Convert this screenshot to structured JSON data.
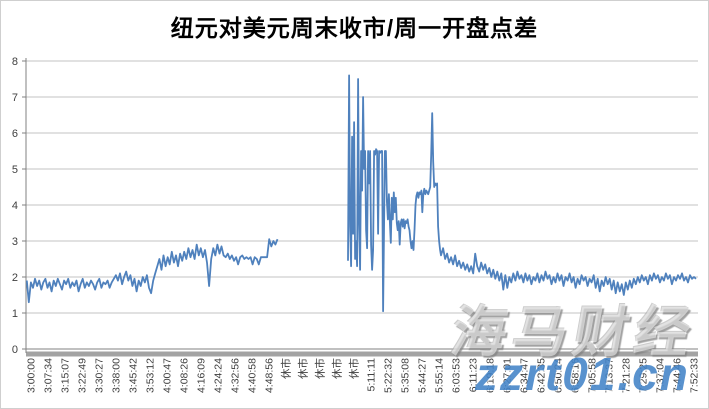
{
  "title": "纽元对美元周末收市/周一开盘点差",
  "watermarks": {
    "brand": "海马财经",
    "site": "zzrt01.cn"
  },
  "colors": {
    "line": "#4F81BD",
    "grid": "#C3C3C3",
    "axis": "#808080",
    "axis_shadow": "#A3A3A3",
    "tick_label": "#404040",
    "title": "#000000"
  },
  "chart_data": {
    "type": "line",
    "title": "纽元对美元周末收市/周一开盘点差",
    "xlabel": "",
    "ylabel": "",
    "ylim": [
      0,
      8
    ],
    "yticks": [
      0,
      1,
      2,
      3,
      4,
      5,
      6,
      7,
      8
    ],
    "grid": "horizontal",
    "legend": "none",
    "x_labels": [
      "3:00:00",
      "3:07:34",
      "3:15:07",
      "3:22:49",
      "3:30:27",
      "3:38:00",
      "3:45:42",
      "3:53:12",
      "4:00:47",
      "4:08:26",
      "4:16:09",
      "4:24:24",
      "4:32:56",
      "4:40:58",
      "4:48:56",
      "休市",
      "休市",
      "休市",
      "休市",
      "休市",
      "5:11:11",
      "5:22:32",
      "5:35:08",
      "5:44:27",
      "5:55:14",
      "6:03:53",
      "6:11:23",
      "6:19:18",
      "6:27:01",
      "6:34:47",
      "6:42:35",
      "6:50:24",
      "6:58:16",
      "7:05:58",
      "7:13:37",
      "7:21:28",
      "7:29:25",
      "7:37:04",
      "7:44:46",
      "7:52:33"
    ],
    "note": "x positions of points are fractional label indices; data gap during 休市 (market closed) between 4:48:56 and 5:11:11",
    "series": [
      {
        "name": "周末收市/周一开盘点差",
        "color": "#4F81BD",
        "runs": [
          {
            "parts": [
              {
                "x_from": -0.25,
                "x_to": 14.5,
                "values": [
                  1.9,
                  1.3,
                  1.85,
                  1.7,
                  1.95,
                  1.75,
                  1.9,
                  1.65,
                  1.85,
                  1.95,
                  1.7,
                  1.85,
                  1.6,
                  1.9,
                  1.75,
                  1.95,
                  1.8,
                  1.65,
                  1.9,
                  1.8,
                  1.95,
                  1.7,
                  1.85,
                  1.75,
                  1.9,
                  1.6,
                  1.8,
                  1.95,
                  1.7,
                  1.85,
                  1.75,
                  1.9,
                  1.8,
                  1.65,
                  1.85,
                  1.95,
                  1.7,
                  1.85,
                  1.8,
                  1.9,
                  1.7,
                  1.85,
                  1.95,
                  2.05,
                  1.9,
                  2.1,
                  1.8,
                  2.0,
                  2.15,
                  1.9,
                  2.05,
                  1.75,
                  1.95,
                  1.6,
                  1.9,
                  1.75,
                  2.0,
                  1.85,
                  2.05,
                  1.7,
                  1.55,
                  1.9,
                  2.1,
                  2.3,
                  2.5,
                  2.2,
                  2.6,
                  2.3,
                  2.55,
                  2.35,
                  2.7,
                  2.4,
                  2.6,
                  2.3,
                  2.65,
                  2.45,
                  2.7,
                  2.5,
                  2.8,
                  2.55,
                  2.75,
                  2.5,
                  2.9,
                  2.6,
                  2.8,
                  2.55,
                  2.75,
                  2.4,
                  1.75,
                  2.5,
                  2.8,
                  2.6,
                  2.9,
                  2.65,
                  2.85,
                  2.6,
                  2.55,
                  2.65,
                  2.5,
                  2.6,
                  2.45,
                  2.55,
                  2.35,
                  2.55,
                  2.6,
                  2.5,
                  2.55,
                  2.5,
                  2.55,
                  2.35,
                  2.55,
                  2.5,
                  2.35,
                  2.55,
                  2.55,
                  2.55,
                  2.55,
                  3.05,
                  2.85,
                  3.0,
                  2.9,
                  3.05
                ]
              }
            ]
          },
          {
            "parts": [
              {
                "x_from": 18.65,
                "x_to": 20.71,
                "values": [
                  2.45,
                  7.6,
                  3.4,
                  2.3,
                  5.9,
                  3.2,
                  6.3,
                  2.5,
                  3.0,
                  2.3,
                  7.5,
                  3.5,
                  2.2,
                  5.5,
                  4.4,
                  7.0,
                  5.0,
                  5.5,
                  3.3,
                  2.8,
                  5.5,
                  4.6,
                  5.5,
                  2.9,
                  2.2,
                  2.75,
                  5.5,
                  5.4,
                  5.55,
                  5.5,
                  3.2,
                  5.5,
                  5.45,
                  5.5,
                  5.5,
                  1.05
                ]
              },
              {
                "x_from": 20.82,
                "x_to": 24.12,
                "values": [
                  5.5,
                  5.5,
                  4.1,
                  3.6,
                  4.3,
                  3.5,
                  2.95,
                  4.2,
                  3.6,
                  4.35,
                  3.8,
                  4.2,
                  3.5,
                  3.3,
                  3.55,
                  2.9,
                  3.5,
                  3.6,
                  3.4,
                  3.6,
                  3.35,
                  3.55,
                  3.5,
                  3.6,
                  3.4,
                  3.3,
                  3.0,
                  2.8,
                  3.0,
                  2.75,
                  3.3,
                  4.0,
                  4.25,
                  4.35,
                  4.2,
                  4.35,
                  4.3,
                  4.4,
                  3.8,
                  4.3,
                  4.45,
                  4.3,
                  4.4,
                  4.35,
                  4.3,
                  4.4,
                  4.5,
                  5.4,
                  6.55,
                  5.2,
                  4.5,
                  4.6,
                  4.55,
                  4.6,
                  3.4,
                  3.0,
                  2.75,
                  2.6
                ]
              },
              {
                "x_from": 24.24,
                "x_to": 39.12,
                "values": [
                  2.8,
                  2.5,
                  2.65,
                  2.4,
                  2.55,
                  2.35,
                  2.6,
                  2.3,
                  2.45,
                  2.25,
                  2.4,
                  2.2,
                  2.35,
                  2.15,
                  2.3,
                  2.1,
                  2.65,
                  2.3,
                  2.15,
                  2.4,
                  2.2,
                  2.35,
                  2.1,
                  2.25,
                  2.0,
                  2.2,
                  1.95,
                  2.15,
                  1.9,
                  2.1,
                  1.65,
                  2.05,
                  1.7,
                  2.0,
                  1.85,
                  2.1,
                  1.9,
                  2.15,
                  1.95,
                  2.05,
                  1.85,
                  2.1,
                  1.9,
                  2.05,
                  1.8,
                  2.0,
                  1.9,
                  2.1,
                  1.85,
                  2.05,
                  1.9,
                  2.15,
                  1.95,
                  2.05,
                  1.8,
                  2.0,
                  1.85,
                  2.1,
                  1.9,
                  2.05,
                  1.75,
                  2.0,
                  1.9,
                  2.1,
                  1.85,
                  2.0,
                  1.7,
                  1.95,
                  1.8,
                  2.05,
                  1.9,
                  2.0,
                  1.75,
                  1.95,
                  1.85,
                  2.05,
                  1.7,
                  1.95,
                  1.6,
                  1.9,
                  1.75,
                  2.0,
                  1.8,
                  1.95,
                  1.65,
                  1.9,
                  1.55,
                  1.85,
                  1.6,
                  1.8,
                  1.5,
                  1.85,
                  1.65,
                  1.9,
                  1.7,
                  1.95,
                  1.8,
                  2.0,
                  1.85,
                  2.05,
                  1.9,
                  2.0,
                  1.8,
                  2.05,
                  1.9,
                  2.1,
                  1.95,
                  2.05,
                  1.85,
                  2.0,
                  1.9,
                  2.1,
                  1.95,
                  2.05,
                  1.8,
                  2.0,
                  1.9,
                  2.05,
                  1.95,
                  2.1,
                  1.9,
                  2.0,
                  1.85,
                  2.05,
                  1.95,
                  2.0,
                  1.95
                ]
              }
            ]
          }
        ]
      }
    ]
  }
}
